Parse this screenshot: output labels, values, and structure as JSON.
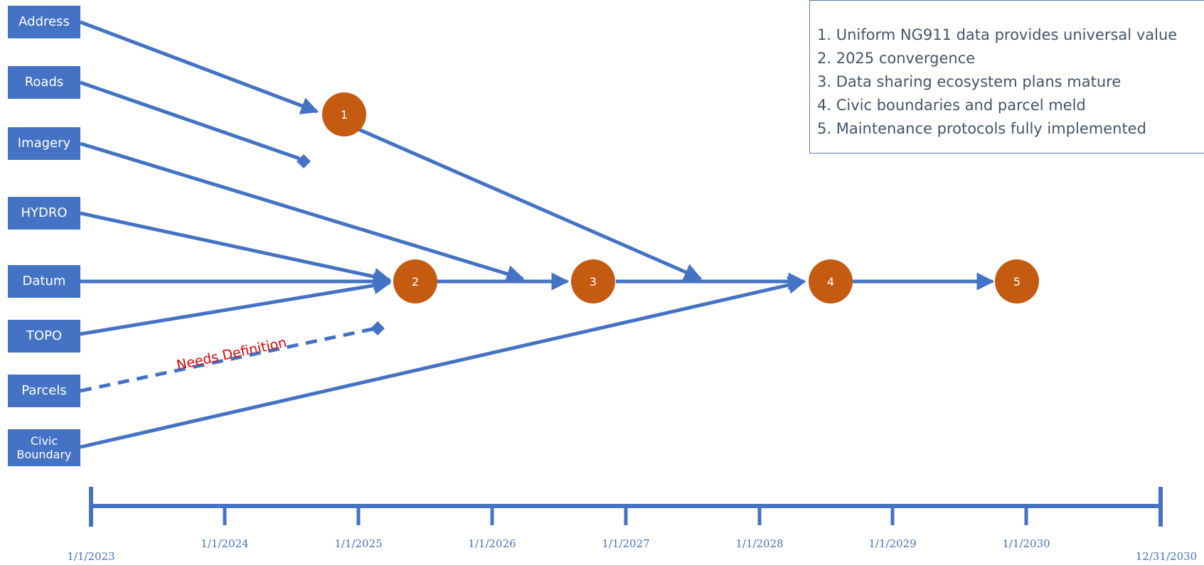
{
  "layers": [
    {
      "id": "address",
      "label": "Address"
    },
    {
      "id": "roads",
      "label": "Roads"
    },
    {
      "id": "imagery",
      "label": "Imagery"
    },
    {
      "id": "hydro",
      "label": "HYDRO"
    },
    {
      "id": "datum",
      "label": "Datum"
    },
    {
      "id": "topo",
      "label": "TOPO"
    },
    {
      "id": "parcels",
      "label": "Parcels"
    },
    {
      "id": "civic",
      "label": "Civic\nBoundary"
    }
  ],
  "milestones": [
    "1",
    "2",
    "3",
    "4",
    "5"
  ],
  "annotation": "Needs Definition",
  "legend": [
    "1. Uniform NG911 data provides universal value",
    "2. 2025 convergence",
    "3. Data sharing ecosystem plans mature",
    "4. Civic boundaries and parcel meld",
    "5. Maintenance protocols fully implemented"
  ],
  "axis": {
    "ticks": [
      "1/1/2023",
      "1/1/2024",
      "1/1/2025",
      "1/1/2026",
      "1/1/2027",
      "1/1/2028",
      "1/1/2029",
      "1/1/2030",
      "12/31/2030"
    ]
  },
  "colors": {
    "line": "#4472C4",
    "milestone": "#C55A11",
    "annotation": "#E00000",
    "legend_text": "#44546a"
  }
}
